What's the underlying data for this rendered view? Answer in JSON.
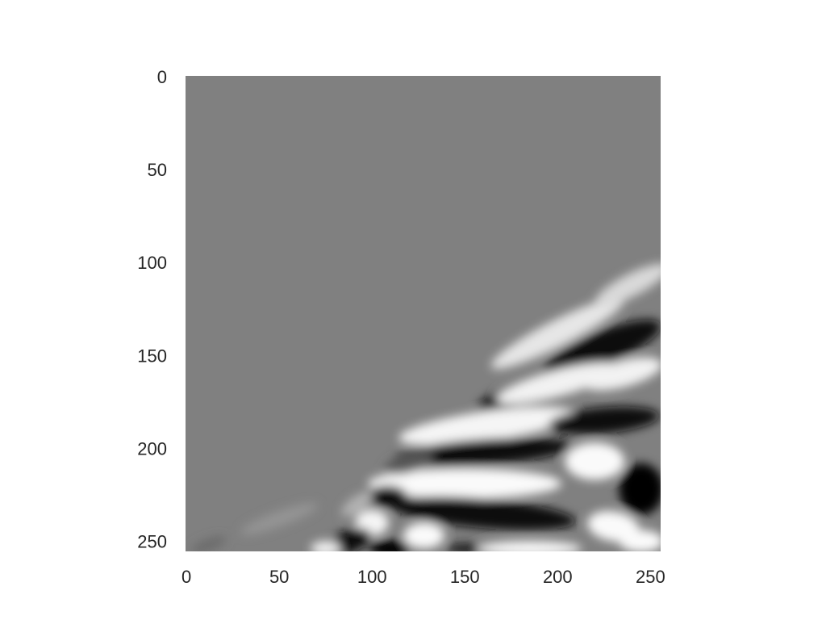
{
  "chart_data": {
    "type": "heatmap",
    "colormap": "gray",
    "grid": false,
    "image_size": [
      256,
      256
    ],
    "background_value": 0.5,
    "xlim": [
      0,
      255
    ],
    "ylim": [
      255,
      0
    ],
    "y_axis_inverted": true,
    "xticks": [
      {
        "value": 0,
        "label": "0"
      },
      {
        "value": 50,
        "label": "50"
      },
      {
        "value": 100,
        "label": "100"
      },
      {
        "value": 150,
        "label": "150"
      },
      {
        "value": 200,
        "label": "200"
      },
      {
        "value": 250,
        "label": "250"
      }
    ],
    "yticks": [
      {
        "value": 0,
        "label": "0"
      },
      {
        "value": 50,
        "label": "50"
      },
      {
        "value": 100,
        "label": "100"
      },
      {
        "value": 150,
        "label": "150"
      },
      {
        "value": 200,
        "label": "200"
      },
      {
        "value": 250,
        "label": "250"
      }
    ],
    "features": [
      {
        "center": [
          200,
          138
        ],
        "radius_x": 40,
        "radius_y": 7,
        "angle_deg": -27,
        "value": 0.9
      },
      {
        "center": [
          240,
          112
        ],
        "radius_x": 22,
        "radius_y": 6,
        "angle_deg": -27,
        "value": 0.85
      },
      {
        "center": [
          224,
          146
        ],
        "radius_x": 34,
        "radius_y": 9,
        "angle_deg": -22,
        "value": 0.04
      },
      {
        "center": [
          172,
          174
        ],
        "radius_x": 16,
        "radius_y": 6,
        "angle_deg": -20,
        "value": 0.05
      },
      {
        "center": [
          200,
          165
        ],
        "radius_x": 34,
        "radius_y": 7,
        "angle_deg": -15,
        "value": 0.95
      },
      {
        "center": [
          235,
          160
        ],
        "radius_x": 22,
        "radius_y": 7,
        "angle_deg": -15,
        "value": 0.95
      },
      {
        "center": [
          162,
          188
        ],
        "radius_x": 48,
        "radius_y": 8,
        "angle_deg": -8,
        "value": 0.96
      },
      {
        "center": [
          225,
          185
        ],
        "radius_x": 30,
        "radius_y": 7,
        "angle_deg": -5,
        "value": 0.06
      },
      {
        "center": [
          160,
          202
        ],
        "radius_x": 48,
        "radius_y": 7,
        "angle_deg": -4,
        "value": 0.03
      },
      {
        "center": [
          150,
          219
        ],
        "radius_x": 52,
        "radius_y": 8,
        "angle_deg": 0,
        "value": 0.98
      },
      {
        "center": [
          220,
          207
        ],
        "radius_x": 16,
        "radius_y": 10,
        "angle_deg": 0,
        "value": 0.98
      },
      {
        "center": [
          245,
          222
        ],
        "radius_x": 12,
        "radius_y": 14,
        "angle_deg": 0,
        "value": 0.0
      },
      {
        "center": [
          160,
          235
        ],
        "radius_x": 50,
        "radius_y": 8,
        "angle_deg": 5,
        "value": 0.04
      },
      {
        "center": [
          230,
          242
        ],
        "radius_x": 14,
        "radius_y": 8,
        "angle_deg": 10,
        "value": 0.98
      },
      {
        "center": [
          245,
          250
        ],
        "radius_x": 12,
        "radius_y": 6,
        "angle_deg": 0,
        "value": 0.98
      },
      {
        "center": [
          108,
          226
        ],
        "radius_x": 11,
        "radius_y": 6,
        "angle_deg": 0,
        "value": 0.05
      },
      {
        "center": [
          100,
          240
        ],
        "radius_x": 9,
        "radius_y": 7,
        "angle_deg": 0,
        "value": 0.96
      },
      {
        "center": [
          88,
          250
        ],
        "radius_x": 12,
        "radius_y": 6,
        "angle_deg": -20,
        "value": 0.06
      },
      {
        "center": [
          128,
          247
        ],
        "radius_x": 11,
        "radius_y": 7,
        "angle_deg": 0,
        "value": 0.98
      },
      {
        "center": [
          110,
          254
        ],
        "radius_x": 11,
        "radius_y": 5,
        "angle_deg": 0,
        "value": 0.0
      },
      {
        "center": [
          150,
          254
        ],
        "radius_x": 10,
        "radius_y": 3,
        "angle_deg": 0,
        "value": 0.1
      },
      {
        "center": [
          185,
          254
        ],
        "radius_x": 28,
        "radius_y": 4,
        "angle_deg": 0,
        "value": 0.98
      },
      {
        "center": [
          75,
          254
        ],
        "radius_x": 8,
        "radius_y": 4,
        "angle_deg": 0,
        "value": 0.95
      },
      {
        "center": [
          120,
          208
        ],
        "radius_x": 14,
        "radius_y": 5,
        "angle_deg": -15,
        "value": 0.35
      },
      {
        "center": [
          92,
          230
        ],
        "radius_x": 10,
        "radius_y": 4,
        "angle_deg": -35,
        "value": 0.7
      },
      {
        "center": [
          50,
          238
        ],
        "radius_x": 22,
        "radius_y": 4,
        "angle_deg": -20,
        "value": 0.58
      },
      {
        "center": [
          12,
          252
        ],
        "radius_x": 10,
        "radius_y": 3,
        "angle_deg": -20,
        "value": 0.42
      }
    ]
  }
}
